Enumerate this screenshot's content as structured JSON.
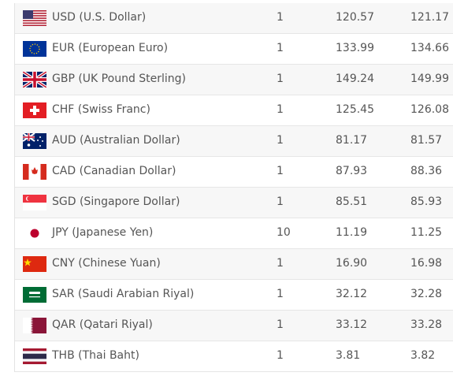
{
  "table": {
    "rows": [
      [
        "USD (U.S. Dollar)",
        "1",
        "120.57",
        "121.17"
      ],
      [
        "EUR (European Euro)",
        "1",
        "133.99",
        "134.66"
      ],
      [
        "GBP (UK Pound Sterling)",
        "1",
        "149.24",
        "149.99"
      ],
      [
        "CHF (Swiss Franc)",
        "1",
        "125.45",
        "126.08"
      ],
      [
        "AUD (Australian Dollar)",
        "1",
        "81.17",
        "81.57"
      ],
      [
        "CAD (Canadian Dollar)",
        "1",
        "87.93",
        "88.36"
      ],
      [
        "SGD (Singapore Dollar)",
        "1",
        "85.51",
        "85.93"
      ],
      [
        "JPY (Japanese Yen)",
        "10",
        "11.19",
        "11.25"
      ],
      [
        "CNY (Chinese Yuan)",
        "1",
        "16.90",
        "16.98"
      ],
      [
        "SAR (Saudi Arabian Riyal)",
        "1",
        "32.12",
        "32.28"
      ],
      [
        "QAR (Qatari Riyal)",
        "1",
        "33.12",
        "33.28"
      ],
      [
        "THB (Thai Baht)",
        "1",
        "3.81",
        "3.82"
      ]
    ]
  }
}
